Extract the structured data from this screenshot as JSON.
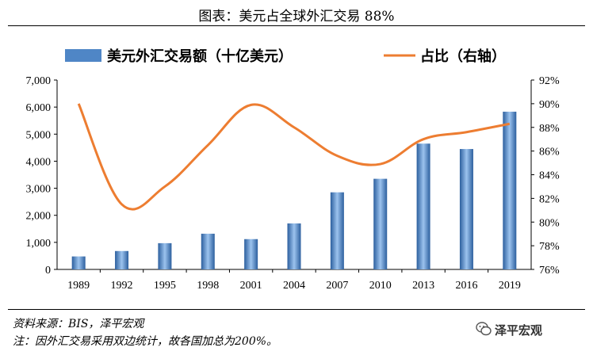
{
  "header": {
    "title": "图表：美元占全球外汇交易 88%"
  },
  "footer": {
    "source": "资料来源：BIS，泽平宏观",
    "note": "注：因外汇交易采用双边统计，故各国加总为200%。",
    "brand": "泽平宏观",
    "brand_icon": "wechat-icon"
  },
  "colors": {
    "bar": "#4f86c6",
    "bar_dark": "#2c5f9e",
    "line": "#ed7d31",
    "axis": "#000000"
  },
  "chart_data": {
    "type": "bar",
    "categories": [
      "1989",
      "1992",
      "1995",
      "1998",
      "2001",
      "2004",
      "2007",
      "2010",
      "2013",
      "2016",
      "2019"
    ],
    "series": [
      {
        "name": "美元外汇交易额（十亿美元）",
        "type": "bar",
        "axis": "left",
        "values": [
          480,
          680,
          970,
          1320,
          1120,
          1700,
          2850,
          3350,
          4650,
          4450,
          5830
        ]
      },
      {
        "name": "占比（右轴）",
        "type": "line",
        "axis": "right",
        "values": [
          90.0,
          81.5,
          83.0,
          86.5,
          89.9,
          88.0,
          85.6,
          84.9,
          87.0,
          87.6,
          88.3
        ]
      }
    ],
    "left_axis": {
      "ylim": [
        0,
        7000
      ],
      "ticks": [
        "0",
        "1,000",
        "2,000",
        "3,000",
        "4,000",
        "5,000",
        "6,000",
        "7,000"
      ]
    },
    "right_axis": {
      "ylim": [
        76,
        92
      ],
      "ticks": [
        "76%",
        "78%",
        "80%",
        "82%",
        "84%",
        "86%",
        "88%",
        "90%",
        "92%"
      ]
    },
    "grid": false,
    "legend_position": "top"
  }
}
